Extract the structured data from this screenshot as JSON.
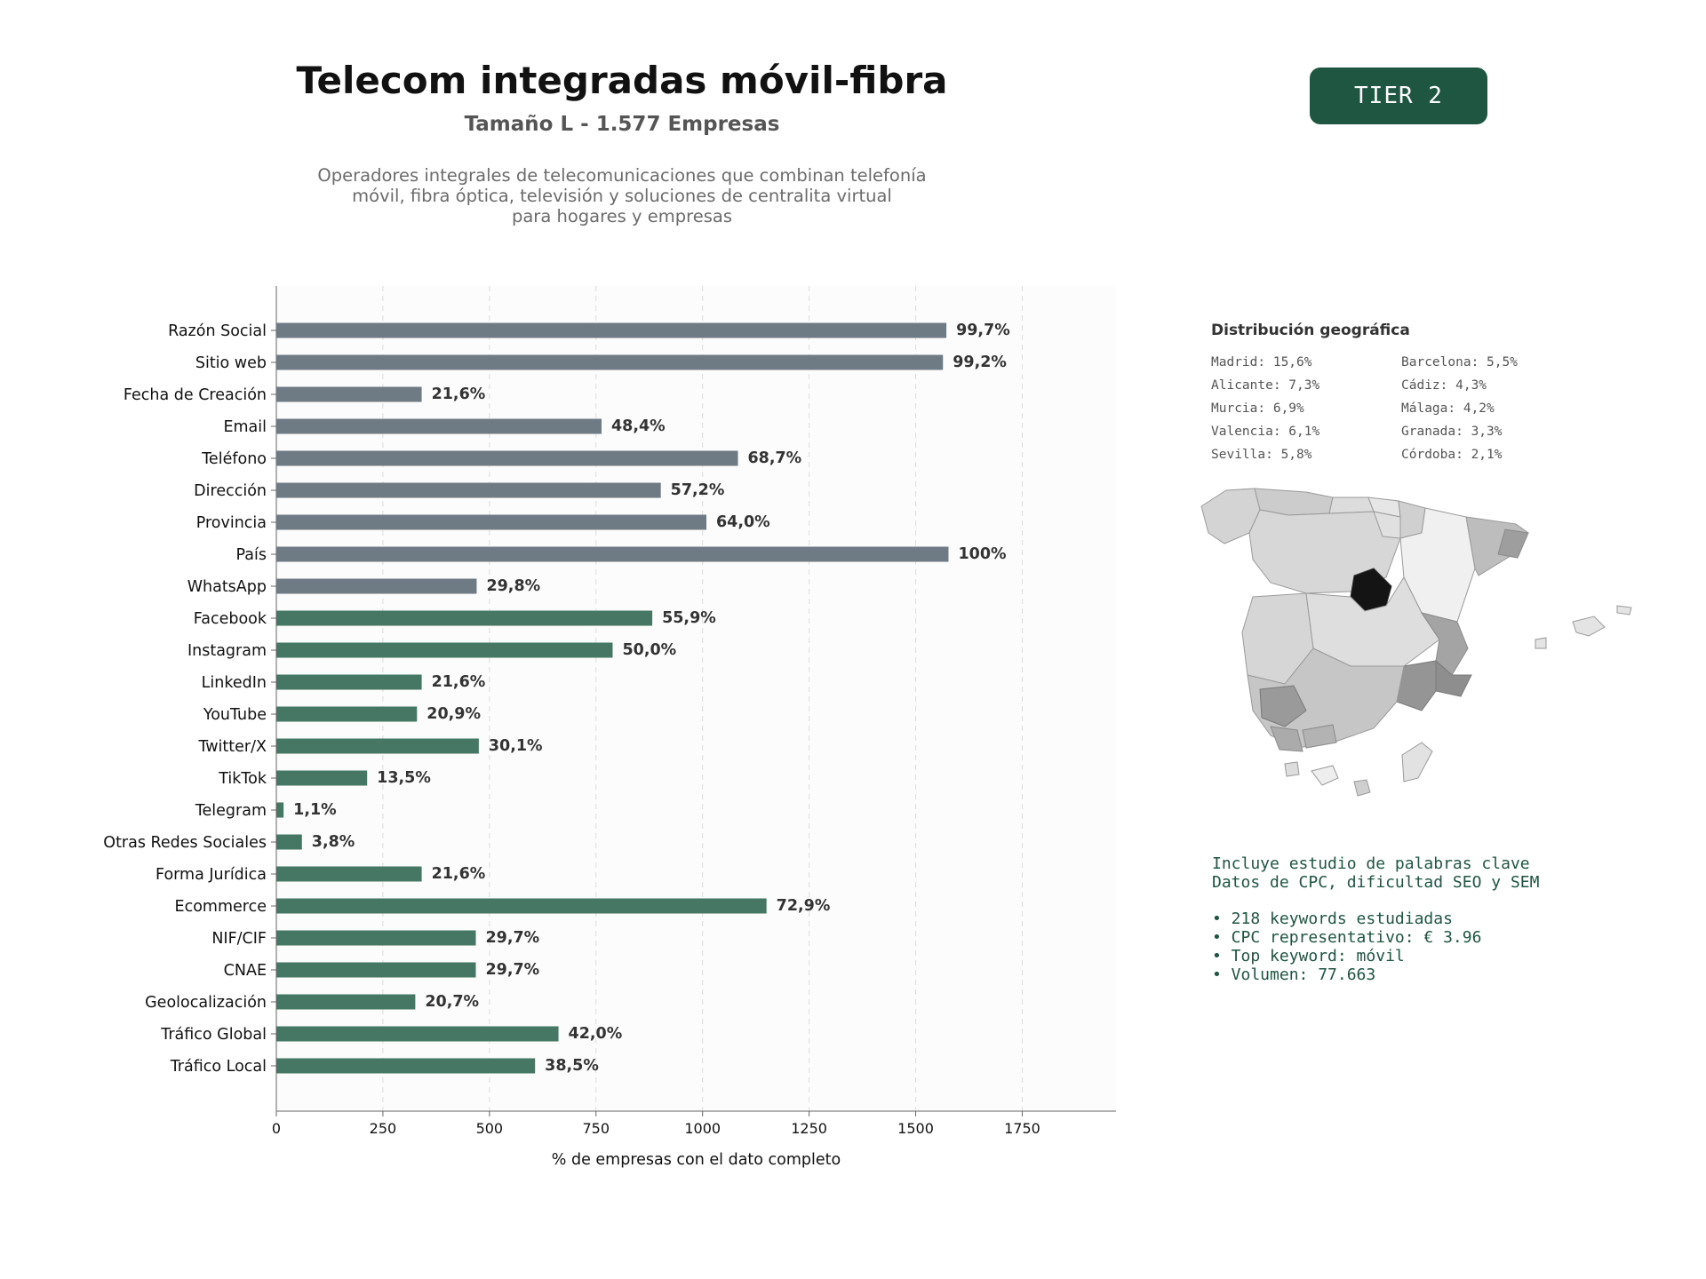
{
  "header": {
    "title": "Telecom integradas móvil-fibra",
    "subtitle": "Tamaño L - 1.577 Empresas",
    "description_lines": [
      "Operadores integrales de telecomunicaciones que combinan telefonía",
      "móvil, fibra óptica, televisión y soluciones de centralita virtual",
      "para hogares y empresas"
    ],
    "tier_badge": "TIER 2"
  },
  "chart_data": {
    "type": "bar",
    "orientation": "horizontal",
    "xlabel": "% de empresas con el dato completo",
    "xlim": [
      0,
      1970
    ],
    "xticks": [
      "0",
      "250",
      "500",
      "750",
      "1000",
      "1250",
      "1500",
      "1750"
    ],
    "xtick_values": [
      0,
      250,
      500,
      750,
      1000,
      1250,
      1500,
      1750
    ],
    "grid": "vertical-dashed",
    "categories": [
      "Razón Social",
      "Sitio web",
      "Fecha de Creación",
      "Email",
      "Teléfono",
      "Dirección",
      "Provincia",
      "País",
      "WhatsApp",
      "Facebook",
      "Instagram",
      "LinkedIn",
      "YouTube",
      "Twitter/X",
      "TikTok",
      "Telegram",
      "Otras Redes Sociales",
      "Forma Jurídica",
      "Ecommerce",
      "NIF/CIF",
      "CNAE",
      "Geolocalización",
      "Tráfico Global",
      "Tráfico Local"
    ],
    "values": [
      1572,
      1564,
      341,
      763,
      1083,
      902,
      1009,
      1577,
      470,
      882,
      789,
      341,
      330,
      475,
      213,
      17,
      60,
      341,
      1150,
      468,
      468,
      326,
      662,
      607
    ],
    "value_labels": [
      "99,7%",
      "99,2%",
      "21,6%",
      "48,4%",
      "68,7%",
      "57,2%",
      "64,0%",
      "100%",
      "29,8%",
      "55,9%",
      "50,0%",
      "21,6%",
      "20,9%",
      "30,1%",
      "13,5%",
      "1,1%",
      "3,8%",
      "21,6%",
      "72,9%",
      "29,7%",
      "29,7%",
      "20,7%",
      "42,0%",
      "38,5%"
    ],
    "bar_colors": [
      "#6e7a84",
      "#6e7a84",
      "#6e7a84",
      "#6e7a84",
      "#6e7a84",
      "#6e7a84",
      "#6e7a84",
      "#6e7a84",
      "#6e7a84",
      "#467765",
      "#467765",
      "#467765",
      "#467765",
      "#467765",
      "#467765",
      "#467765",
      "#467765",
      "#467765",
      "#467765",
      "#467765",
      "#467765",
      "#467765",
      "#467765",
      "#467765"
    ]
  },
  "geo": {
    "title": "Distribución geográfica",
    "items": [
      "Madrid: 15,6%",
      "Barcelona: 5,5%",
      "Alicante: 7,3%",
      "Cádiz: 4,3%",
      "Murcia: 6,9%",
      "Málaga: 4,2%",
      "Valencia: 6,1%",
      "Granada: 3,3%",
      "Sevilla: 5,8%",
      "Córdoba: 2,1%"
    ]
  },
  "keywords": {
    "intro_lines": [
      "Incluye estudio de palabras clave",
      "Datos de CPC, dificultad SEO y SEM"
    ],
    "bullets": [
      "• 218 keywords estudiadas",
      "• CPC representativo: € 3.96",
      "• Top keyword: móvil",
      "• Volumen: 77.663"
    ]
  }
}
